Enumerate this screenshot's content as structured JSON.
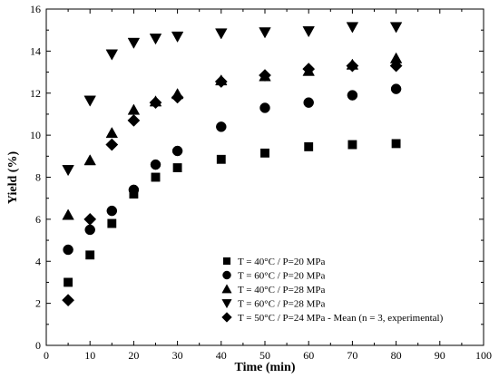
{
  "chart_data": {
    "type": "scatter",
    "title": "",
    "xlabel": "Time (min)",
    "ylabel": "Yield (%)",
    "xlim": [
      0,
      100
    ],
    "ylim": [
      0,
      16
    ],
    "xticks": [
      0,
      10,
      20,
      30,
      40,
      50,
      60,
      70,
      80,
      90,
      100
    ],
    "yticks": [
      0,
      2,
      4,
      6,
      8,
      10,
      12,
      14,
      16
    ],
    "grid": false,
    "legend_position": "bottom-right",
    "marker_color": "#000000",
    "series": [
      {
        "name": "T = 40°C / P=20 MPa",
        "marker": "square",
        "x": [
          5,
          10,
          15,
          20,
          25,
          30,
          40,
          50,
          60,
          70,
          80
        ],
        "y": [
          3.0,
          4.3,
          5.8,
          7.2,
          8.0,
          8.45,
          8.85,
          9.15,
          9.45,
          9.55,
          9.6
        ]
      },
      {
        "name": "T = 60°C / P=20 MPa",
        "marker": "circle",
        "x": [
          5,
          10,
          15,
          20,
          25,
          30,
          40,
          50,
          60,
          70,
          80
        ],
        "y": [
          4.55,
          5.5,
          6.4,
          7.4,
          8.6,
          9.25,
          10.4,
          11.3,
          11.55,
          11.9,
          12.2
        ]
      },
      {
        "name": "T = 40°C / P=28 MPa",
        "marker": "triangle-up",
        "x": [
          5,
          10,
          15,
          20,
          25,
          30,
          40,
          50,
          60,
          70,
          80
        ],
        "y": [
          6.2,
          8.8,
          10.1,
          11.2,
          11.6,
          11.95,
          12.6,
          12.8,
          13.05,
          13.35,
          13.65
        ]
      },
      {
        "name": "T = 60°C / P=28 MPa",
        "marker": "triangle-down",
        "x": [
          5,
          10,
          15,
          20,
          25,
          30,
          40,
          50,
          60,
          70,
          80
        ],
        "y": [
          8.35,
          11.65,
          13.85,
          14.4,
          14.6,
          14.7,
          14.85,
          14.9,
          14.95,
          15.15,
          15.15
        ]
      },
      {
        "name": "T = 50°C / P=24 MPa - Mean (n = 3, experimental)",
        "marker": "diamond",
        "x": [
          5,
          10,
          15,
          20,
          25,
          30,
          40,
          50,
          60,
          70,
          80
        ],
        "y": [
          2.15,
          6.0,
          9.55,
          10.7,
          11.55,
          11.8,
          12.55,
          12.85,
          13.15,
          13.3,
          13.3
        ]
      }
    ]
  }
}
